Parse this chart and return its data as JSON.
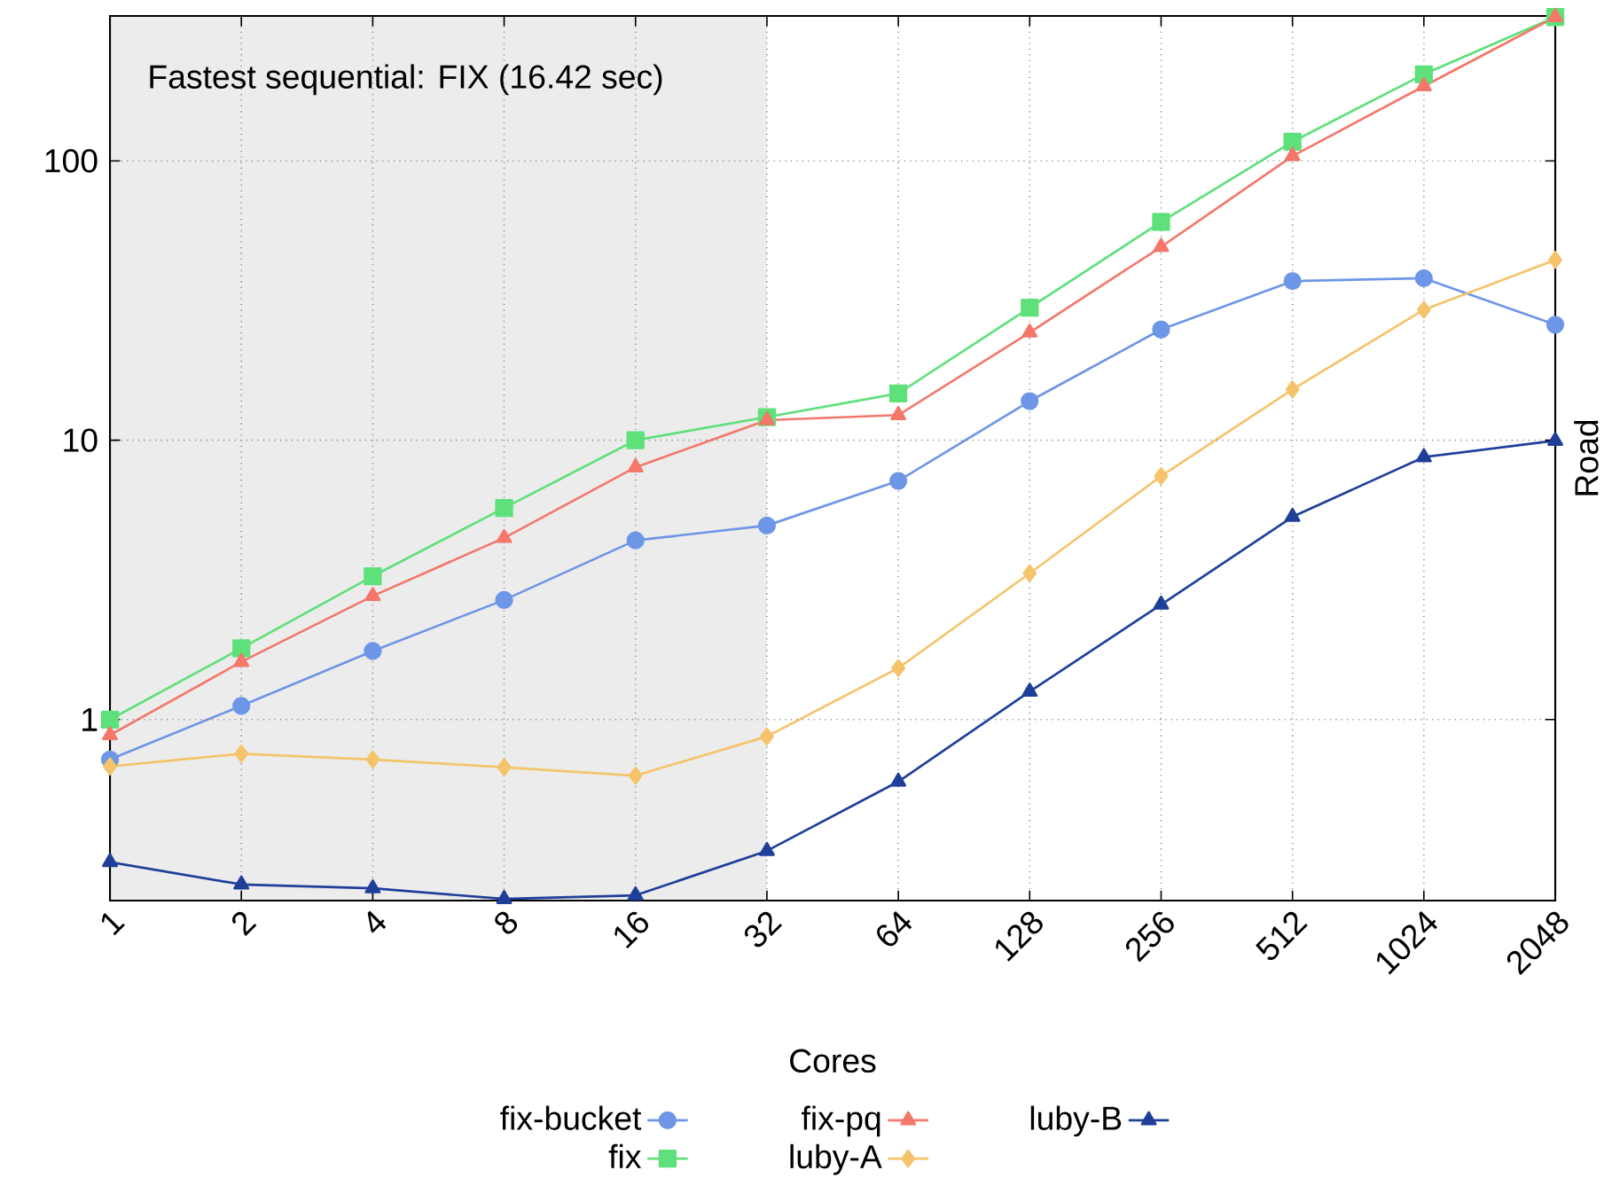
{
  "chart_data": {
    "type": "line",
    "categories": [
      "1",
      "2",
      "4",
      "8",
      "16",
      "32",
      "64",
      "128",
      "256",
      "512",
      "1024",
      "2048"
    ],
    "xlabel": "Cores",
    "ylabel": "Road",
    "log": "y",
    "ylim": [
      0.225,
      330
    ],
    "yticks": [
      1,
      10,
      100
    ],
    "grid": true,
    "legend": "bottom",
    "line_style": "solid",
    "bands": [
      {
        "axis": "x",
        "from": "1",
        "to": "32",
        "color": "#ececec"
      }
    ],
    "annotations": [
      "Fastest sequential: FIX (16.42 sec)"
    ],
    "series": [
      {
        "name": "fix-bucket",
        "color": "#6e96e6",
        "marker": "circle",
        "values": [
          0.72,
          1.12,
          1.76,
          2.68,
          4.38,
          4.95,
          7.15,
          13.8,
          24.9,
          37.1,
          38.0,
          25.9
        ]
      },
      {
        "name": "fix",
        "color": "#5ee07a",
        "marker": "square",
        "values": [
          1.0,
          1.8,
          3.26,
          5.72,
          10.0,
          12.1,
          14.7,
          29.8,
          60.4,
          117,
          204,
          327
        ]
      },
      {
        "name": "fix-pq",
        "color": "#f4776a",
        "marker": "triangle",
        "values": [
          0.88,
          1.61,
          2.77,
          4.47,
          8.0,
          11.8,
          12.3,
          24.3,
          49.2,
          104,
          185,
          327
        ]
      },
      {
        "name": "luby-A",
        "color": "#f5c36a",
        "marker": "diamond",
        "values": [
          0.68,
          0.755,
          0.72,
          0.675,
          0.63,
          0.87,
          1.53,
          3.34,
          7.44,
          15.2,
          29.3,
          44.2
        ]
      },
      {
        "name": "luby-B",
        "color": "#1f3f99",
        "marker": "triangle",
        "values": [
          0.309,
          0.257,
          0.249,
          0.228,
          0.235,
          0.339,
          0.6,
          1.26,
          2.58,
          5.32,
          8.7,
          9.96
        ]
      }
    ]
  }
}
